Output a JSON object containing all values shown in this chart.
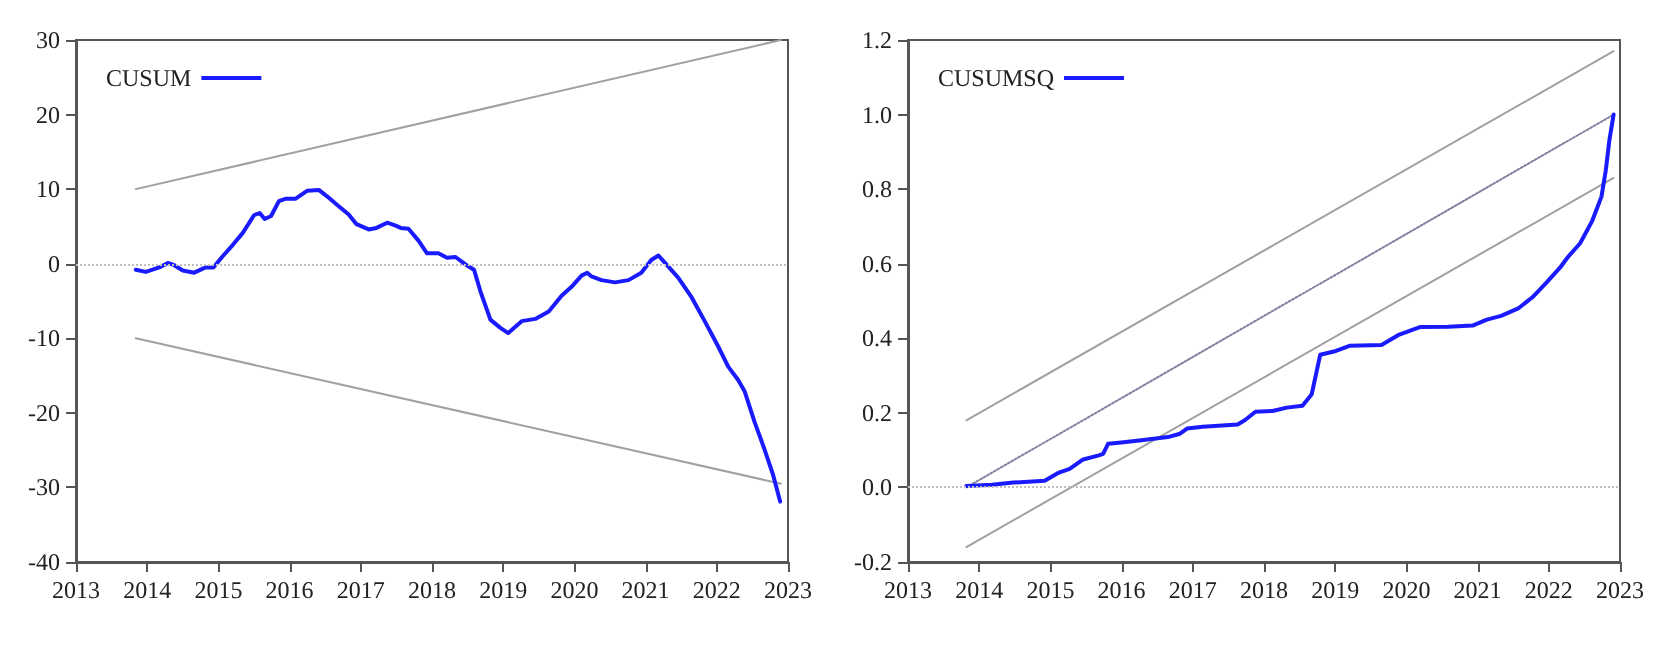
{
  "chart_data": [
    {
      "type": "line",
      "xlim": [
        2013,
        2023
      ],
      "xticks": [
        2013,
        2014,
        2015,
        2016,
        2017,
        2018,
        2019,
        2020,
        2021,
        2022,
        2023
      ],
      "ylim": [
        -40,
        30
      ],
      "yticks": [
        -40,
        -30,
        -20,
        -10,
        0,
        10,
        20,
        30
      ],
      "grid": false,
      "legend": "top left",
      "marker": "none",
      "ref_lines": [
        {
          "axis": "y",
          "value": 0,
          "color": "#c0c0c0",
          "line_style": "dotted"
        }
      ],
      "series": [
        {
          "name": "CUSUM",
          "color": "#1a1aff",
          "line_style": "solid",
          "x": [
            2013.84,
            2013.98,
            2014.17,
            2014.29,
            2014.38,
            2014.5,
            2014.66,
            2014.82,
            2014.93,
            2015.06,
            2015.2,
            2015.34,
            2015.5,
            2015.58,
            2015.65,
            2015.74,
            2015.85,
            2015.94,
            2016.08,
            2016.25,
            2016.41,
            2016.53,
            2016.69,
            2016.83,
            2016.94,
            2017.11,
            2017.22,
            2017.37,
            2017.49,
            2017.56,
            2017.67,
            2017.81,
            2017.93,
            2018.09,
            2018.21,
            2018.33,
            2018.47,
            2018.59,
            2018.68,
            2018.82,
            2018.96,
            2019.07,
            2019.26,
            2019.45,
            2019.64,
            2019.82,
            2019.96,
            2020.1,
            2020.18,
            2020.24,
            2020.38,
            2020.57,
            2020.76,
            2020.94,
            2021.08,
            2021.18,
            2021.32,
            2021.46,
            2021.64,
            2021.83,
            2022.02,
            2022.16,
            2022.3,
            2022.39,
            2022.53,
            2022.67,
            2022.79,
            2022.89
          ],
          "values": [
            -0.8,
            -1.1,
            -0.5,
            0.1,
            -0.2,
            -0.9,
            -1.2,
            -0.5,
            -0.5,
            1.0,
            2.5,
            4.1,
            6.5,
            6.8,
            6.0,
            6.4,
            8.4,
            8.7,
            8.7,
            9.8,
            9.9,
            9.0,
            7.7,
            6.6,
            5.3,
            4.6,
            4.8,
            5.5,
            5.1,
            4.8,
            4.7,
            3.1,
            1.4,
            1.4,
            0.8,
            0.9,
            -0.1,
            -0.8,
            -3.7,
            -7.5,
            -8.6,
            -9.3,
            -7.7,
            -7.4,
            -6.4,
            -4.3,
            -3.1,
            -1.6,
            -1.2,
            -1.7,
            -2.2,
            -2.5,
            -2.2,
            -1.2,
            0.5,
            1.1,
            -0.4,
            -1.9,
            -4.4,
            -7.7,
            -11.1,
            -13.8,
            -15.6,
            -17.1,
            -21.2,
            -24.9,
            -28.3,
            -31.9
          ]
        },
        {
          "color": "#a0a0a0",
          "line_style": "solid",
          "x": [
            2013.84,
            2022.9
          ],
          "values": [
            10,
            30
          ]
        },
        {
          "color": "#a0a0a0",
          "line_style": "solid",
          "x": [
            2013.84,
            2022.9
          ],
          "values": [
            -10,
            -29.5
          ]
        }
      ]
    },
    {
      "type": "line",
      "xlim": [
        2013,
        2023
      ],
      "xticks": [
        2013,
        2014,
        2015,
        2016,
        2017,
        2018,
        2019,
        2020,
        2021,
        2022,
        2023
      ],
      "ylim": [
        -0.2,
        1.2
      ],
      "yticks": [
        {
          "value": -0.2,
          "label": "-0.2"
        },
        {
          "value": 0,
          "label": "0.0"
        },
        {
          "value": 0.2,
          "label": "0.2"
        },
        {
          "value": 0.4,
          "label": "0.4"
        },
        {
          "value": 0.6,
          "label": "0.6"
        },
        {
          "value": 0.8,
          "label": "0.8"
        },
        {
          "value": 1,
          "label": "1.0"
        },
        {
          "value": 1.2,
          "label": "1.2"
        }
      ],
      "grid": false,
      "legend": "top left",
      "marker": "none",
      "ref_lines": [
        {
          "axis": "y",
          "value": 0,
          "color": "#c0c0c0",
          "line_style": "dotted"
        }
      ],
      "series": [
        {
          "name": "CUSUMSQ",
          "color": "#1a1aff",
          "line_style": "solid",
          "x": [
            2013.82,
            2014.18,
            2014.48,
            2014.92,
            2015.12,
            2015.27,
            2015.46,
            2015.68,
            2015.74,
            2015.81,
            2015.96,
            2016.25,
            2016.65,
            2016.82,
            2016.92,
            2017.14,
            2017.63,
            2017.73,
            2017.88,
            2018.12,
            2018.32,
            2018.54,
            2018.67,
            2018.79,
            2019.01,
            2019.21,
            2019.65,
            2019.9,
            2020.19,
            2020.59,
            2020.93,
            2021.13,
            2021.33,
            2021.57,
            2021.77,
            2021.97,
            2022.16,
            2022.26,
            2022.44,
            2022.61,
            2022.74,
            2022.8,
            2022.85,
            2022.91
          ],
          "values": [
            0.004,
            0.007,
            0.013,
            0.018,
            0.04,
            0.05,
            0.075,
            0.086,
            0.09,
            0.117,
            0.12,
            0.126,
            0.135,
            0.144,
            0.158,
            0.163,
            0.169,
            0.18,
            0.203,
            0.205,
            0.214,
            0.219,
            0.25,
            0.356,
            0.366,
            0.38,
            0.382,
            0.41,
            0.43,
            0.431,
            0.434,
            0.45,
            0.46,
            0.48,
            0.51,
            0.55,
            0.59,
            0.616,
            0.655,
            0.715,
            0.78,
            0.85,
            0.93,
            1.0
          ]
        },
        {
          "color": "#a0a0a0",
          "line_style": "solid",
          "x": [
            2013.82,
            2022.91
          ],
          "values": [
            0.18,
            1.17
          ]
        },
        {
          "color": "#8080a0",
          "line_style": "dotted",
          "x": [
            2013.82,
            2022.91
          ],
          "values": [
            0,
            1.0
          ]
        },
        {
          "color": "#a0a0a0",
          "line_style": "solid",
          "x": [
            2013.82,
            2022.91
          ],
          "values": [
            -0.16,
            0.83
          ]
        }
      ]
    }
  ]
}
